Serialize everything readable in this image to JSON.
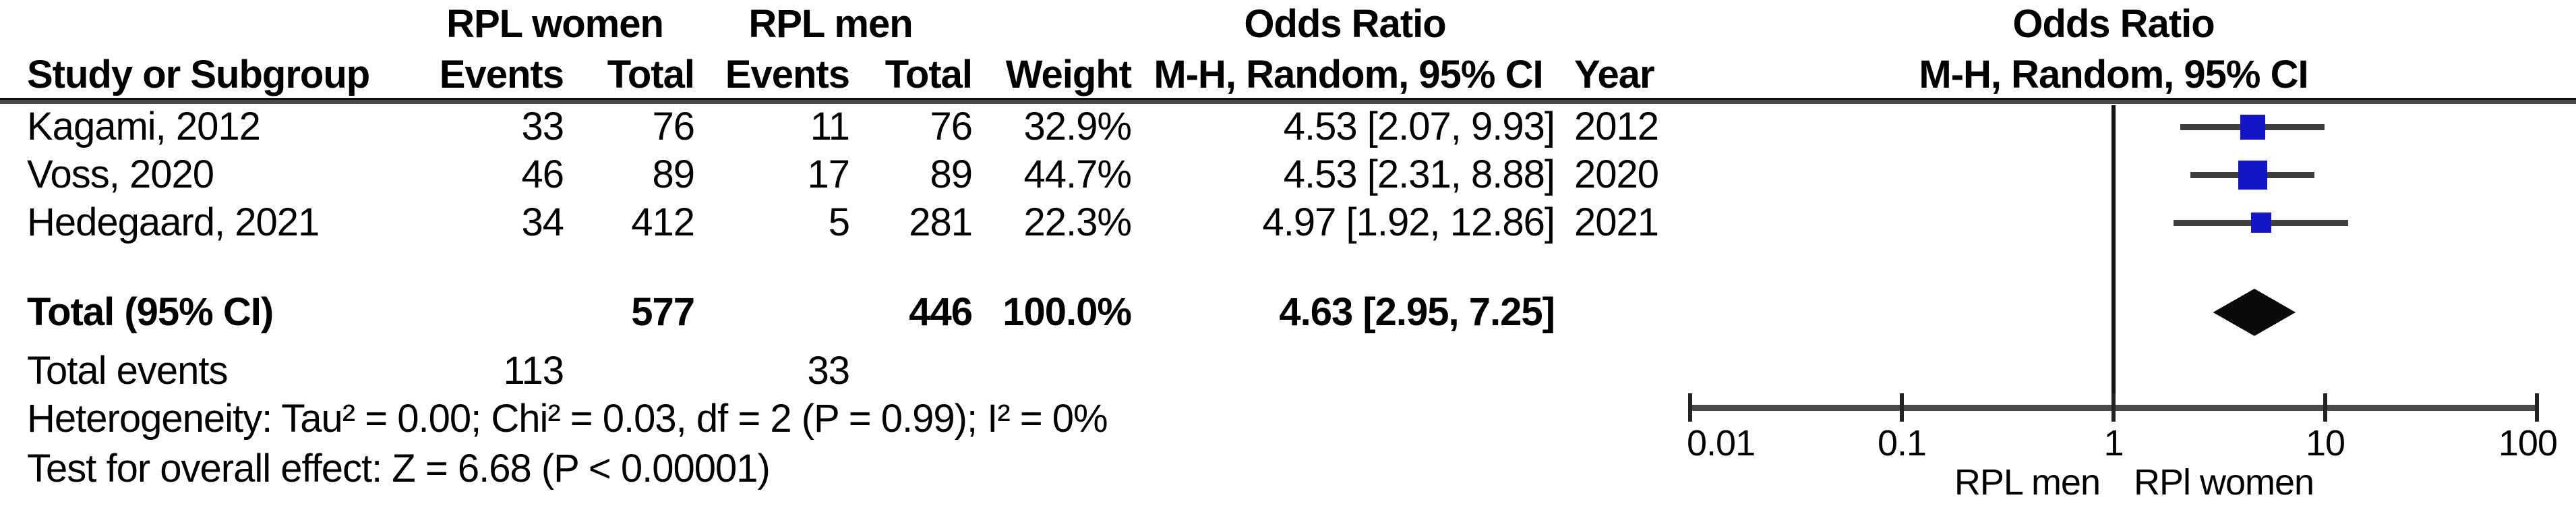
{
  "table": {
    "headers": {
      "group_women": "RPL women",
      "group_men": "RPL men",
      "odds_ratio": "Odds Ratio",
      "study": "Study or Subgroup",
      "events": "Events",
      "total": "Total",
      "weight": "Weight",
      "mh_random": "M-H, Random, 95% CI",
      "year": "Year"
    },
    "rows": [
      {
        "study": "Kagami, 2012",
        "events_women": "33",
        "total_women": "76",
        "events_men": "11",
        "total_men": "76",
        "weight": "32.9%",
        "or_ci": "4.53 [2.07, 9.93]",
        "year": "2012"
      },
      {
        "study": "Voss, 2020",
        "events_women": "46",
        "total_women": "89",
        "events_men": "17",
        "total_men": "89",
        "weight": "44.7%",
        "or_ci": "4.53 [2.31, 8.88]",
        "year": "2020"
      },
      {
        "study": "Hedegaard, 2021",
        "events_women": "34",
        "total_women": "412",
        "events_men": "5",
        "total_men": "281",
        "weight": "22.3%",
        "or_ci": "4.97 [1.92, 12.86]",
        "year": "2021"
      }
    ],
    "total_row": {
      "label": "Total (95% CI)",
      "total_women": "577",
      "total_men": "446",
      "weight": "100.0%",
      "or_ci": "4.63 [2.95, 7.25]"
    },
    "total_events_row": {
      "label": "Total events",
      "events_women": "113",
      "events_men": "33"
    },
    "heterogeneity": "Heterogeneity: Tau² = 0.00; Chi² = 0.03, df = 2 (P = 0.99); I² = 0%",
    "overall_effect": "Test for overall effect: Z = 6.68 (P < 0.00001)"
  },
  "chart_data": {
    "type": "forest",
    "title": "Odds Ratio",
    "subtitle": "M-H, Random, 95% CI",
    "x_scale": "log10",
    "xlim": [
      0.01,
      100
    ],
    "null_value": 1,
    "x_ticks": [
      0.01,
      0.1,
      1,
      10,
      100
    ],
    "x_tick_labels": [
      "0.01",
      "0.1",
      "1",
      "10",
      "100"
    ],
    "axis_label_left": "RPL men",
    "axis_label_right": "RPl women",
    "marker_color": "#1414c8",
    "ci_color": "#3f3f3f",
    "summary_color": "#0a0a0a",
    "studies": [
      {
        "name": "Kagami, 2012",
        "or": 4.53,
        "ci_low": 2.07,
        "ci_high": 9.93,
        "weight_pct": 32.9,
        "year": 2012
      },
      {
        "name": "Voss, 2020",
        "or": 4.53,
        "ci_low": 2.31,
        "ci_high": 8.88,
        "weight_pct": 44.7,
        "year": 2020
      },
      {
        "name": "Hedegaard, 2021",
        "or": 4.97,
        "ci_low": 1.92,
        "ci_high": 12.86,
        "weight_pct": 22.3,
        "year": 2021
      }
    ],
    "overall": {
      "label": "Total (95% CI)",
      "or": 4.63,
      "ci_low": 2.95,
      "ci_high": 7.25,
      "weight_pct": 100.0
    }
  }
}
